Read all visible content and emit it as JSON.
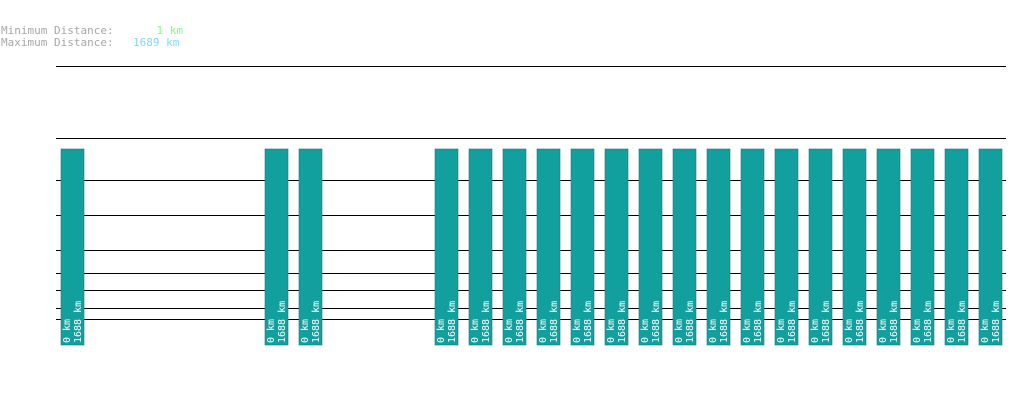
{
  "legend": {
    "min_label": "Minimum Distance:",
    "min_value": "1 km",
    "max_label": "Maximum Distance:",
    "max_value": "1689 km"
  },
  "colors": {
    "bar": "#12a09e",
    "bar_stroke": "#0c7e7c",
    "axis": "#000000",
    "bar_text": "#ffffff",
    "min_value": "#7fff7f",
    "max_value": "#7fd8ff",
    "label": "#a8a8a8"
  },
  "chart_data": {
    "type": "bar",
    "slots": 28,
    "bars": [
      {
        "slot": 0,
        "min_label": "0 km",
        "max_label": "1688 km"
      },
      {
        "slot": 6,
        "min_label": "0 km",
        "max_label": "1688 km"
      },
      {
        "slot": 7,
        "min_label": "0 km",
        "max_label": "1688 km"
      },
      {
        "slot": 11,
        "min_label": "0 km",
        "max_label": "1688 km"
      },
      {
        "slot": 12,
        "min_label": "0 km",
        "max_label": "1688 km"
      },
      {
        "slot": 13,
        "min_label": "0 km",
        "max_label": "1688 km"
      },
      {
        "slot": 14,
        "min_label": "0 km",
        "max_label": "1688 km"
      },
      {
        "slot": 15,
        "min_label": "0 km",
        "max_label": "1688 km"
      },
      {
        "slot": 16,
        "min_label": "0 km",
        "max_label": "1688 km"
      },
      {
        "slot": 17,
        "min_label": "0 km",
        "max_label": "1688 km"
      },
      {
        "slot": 18,
        "min_label": "0 km",
        "max_label": "1688 km"
      },
      {
        "slot": 19,
        "min_label": "0 km",
        "max_label": "1688 km"
      },
      {
        "slot": 20,
        "min_label": "0 km",
        "max_label": "1688 km"
      },
      {
        "slot": 21,
        "min_label": "0 km",
        "max_label": "1688 km"
      },
      {
        "slot": 22,
        "min_label": "0 km",
        "max_label": "1688 km"
      },
      {
        "slot": 23,
        "min_label": "0 km",
        "max_label": "1688 km"
      },
      {
        "slot": 24,
        "min_label": "0 km",
        "max_label": "1688 km"
      },
      {
        "slot": 25,
        "min_label": "0 km",
        "max_label": "1688 km"
      },
      {
        "slot": 26,
        "min_label": "0 km",
        "max_label": "1688 km"
      },
      {
        "slot": 27,
        "min_label": "0 km",
        "max_label": "1688 km"
      }
    ]
  }
}
